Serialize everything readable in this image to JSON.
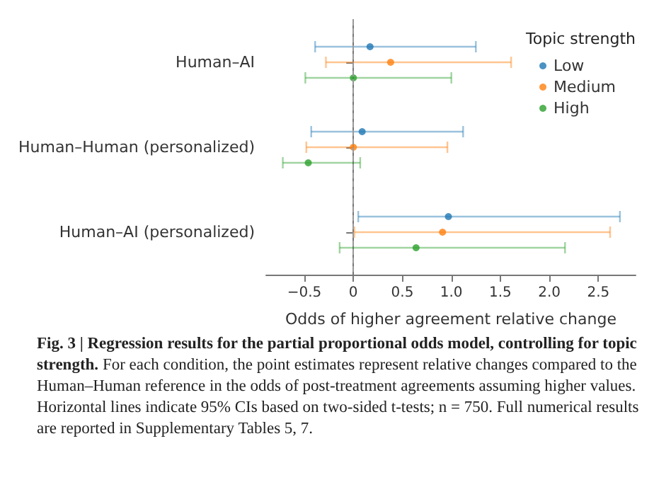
{
  "chart_data": {
    "type": "scatter",
    "orientation": "horizontal",
    "categories": [
      "Human–AI",
      "Human–Human (personalized)",
      "Human–AI (personalized)"
    ],
    "series": [
      {
        "name": "Low",
        "color": "#1f77b4",
        "values": [
          0.17,
          0.09,
          0.97
        ],
        "errors": [
          [
            -0.39,
            1.25
          ],
          [
            -0.43,
            1.12
          ],
          [
            0.05,
            2.72
          ]
        ]
      },
      {
        "name": "Medium",
        "color": "#ff7f0e",
        "values": [
          0.38,
          0.0,
          0.91
        ],
        "errors": [
          [
            -0.28,
            1.61
          ],
          [
            -0.48,
            0.96
          ],
          [
            0.01,
            2.62
          ]
        ]
      },
      {
        "name": "High",
        "color": "#2ca02c",
        "values": [
          0.0,
          -0.46,
          0.64
        ],
        "errors": [
          [
            -0.49,
            1.0
          ],
          [
            -0.72,
            0.07
          ],
          [
            -0.14,
            2.16
          ]
        ]
      }
    ],
    "xlim": [
      -0.89,
      2.88
    ],
    "xticks": [
      {
        "value": -0.5,
        "label": "−0.5"
      },
      0,
      0.5,
      {
        "value": 1,
        "label": "1.0"
      },
      1.5,
      {
        "value": 2,
        "label": "2.0"
      },
      2.5
    ],
    "xlabel": "Odds of higher agreement relative change",
    "legend": "top right",
    "legend_title": "Topic strength",
    "marker": "circle",
    "grid": false,
    "ref_lines": [
      {
        "axis": "x",
        "value": 0,
        "color": "#999999",
        "line_style": "dashed"
      }
    ],
    "annotations": [
      "Fig. 3 | Regression results for the partial proportional odds model, controlling for topic strength.",
      "For each condition, the point estimates represent relative changes compared to the Human–Human reference in the odds of post-treatment agreements assuming higher values. Horizontal lines indicate 95% CIs based on two-sided t-tests; n = 750. Full numerical results are reported in Supplementary Tables 5, 7."
    ]
  }
}
